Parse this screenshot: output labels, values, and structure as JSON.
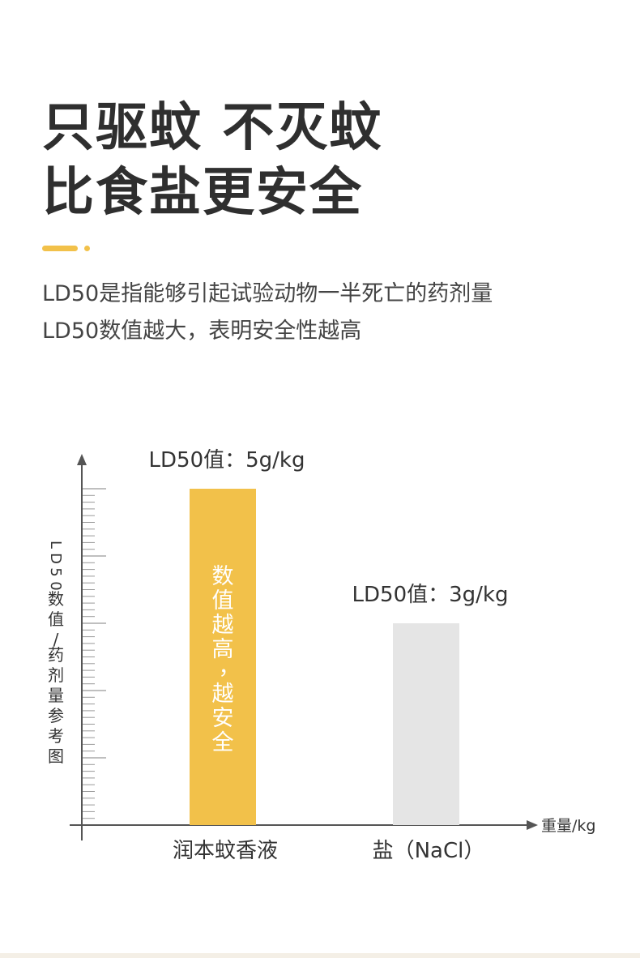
{
  "headline": {
    "line1": "只驱蚊 不灭蚊",
    "line2": "比食盐更安全"
  },
  "accent_color": "#f2c14a",
  "description": {
    "line1": "LD50是指能够引起试验动物一半死亡的药剂量",
    "line2": "LD50数值越大，表明安全性越高"
  },
  "chart_data": {
    "type": "bar",
    "ylabel": "LD50数值/药剂量参考图",
    "xlabel": "重量/kg",
    "ylim": [
      0,
      5
    ],
    "grid": false,
    "categories": [
      "润本蚊香液",
      "盐（NaCl）"
    ],
    "values": [
      5,
      3
    ],
    "units": "g/kg",
    "value_labels": [
      "LD50值：5g/kg",
      "LD50值：3g/kg"
    ],
    "bar_colors": [
      "#f2c14a",
      "#e5e5e5"
    ],
    "bar_annotation": "数值越高，越安全"
  },
  "bar_annotation_chars": [
    "数",
    "值",
    "越",
    "高",
    "，",
    "越",
    "安",
    "全"
  ],
  "ylabel_chars": [
    "L",
    "D",
    "5",
    "0",
    "数",
    "值",
    "/",
    "药",
    "剂",
    "量",
    "参",
    "考",
    "图"
  ]
}
